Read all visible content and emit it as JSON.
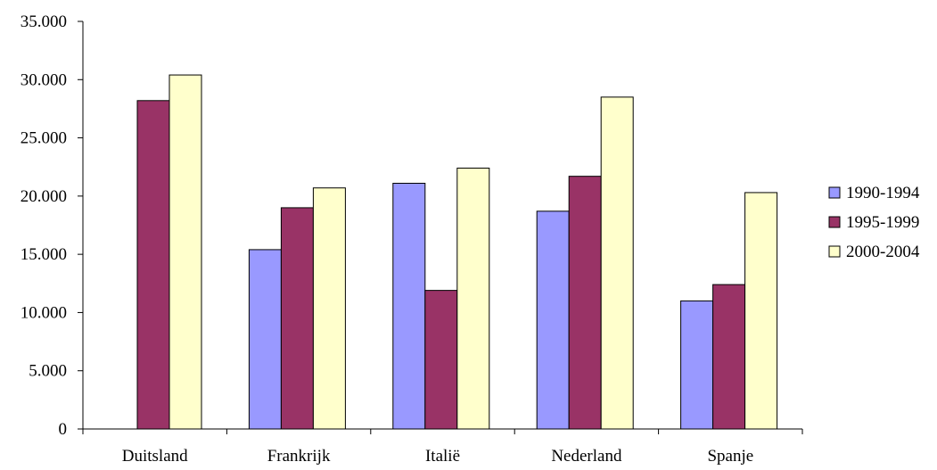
{
  "chart_data": {
    "type": "bar",
    "title": "",
    "xlabel": "",
    "ylabel": "",
    "categories": [
      "Duitsland",
      "Frankrijk",
      "Italië",
      "Nederland",
      "Spanje"
    ],
    "series": [
      {
        "name": "1990-1994",
        "color": "#9999ff",
        "values": [
          null,
          15400,
          21100,
          18700,
          11000
        ]
      },
      {
        "name": "1995-1999",
        "color": "#993366",
        "values": [
          28200,
          19000,
          11900,
          21700,
          12400
        ]
      },
      {
        "name": "2000-2004",
        "color": "#ffffcc",
        "values": [
          30400,
          20700,
          22400,
          28500,
          20300
        ]
      }
    ],
    "ylim": [
      0,
      35000
    ],
    "yticks": [
      0,
      5000,
      10000,
      15000,
      20000,
      25000,
      30000,
      35000
    ],
    "ytick_labels": [
      "0",
      "5.000",
      "10.000",
      "15.000",
      "20.000",
      "25.000",
      "30.000",
      "35.000"
    ],
    "grid": false,
    "legend_position": "right"
  }
}
